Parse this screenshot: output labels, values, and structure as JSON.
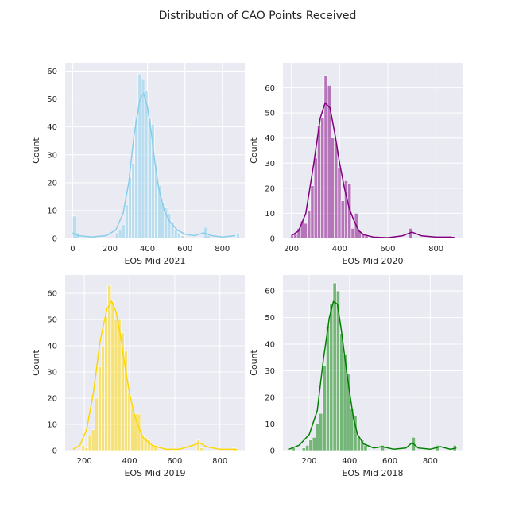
{
  "figure": {
    "title": "Distribution of CAO Points Received"
  },
  "chart_data": [
    {
      "type": "histogram",
      "panel": "top-left",
      "xlabel": "EOS Mid 2021",
      "ylabel": "Count",
      "color": "#87ceeb",
      "xlim": [
        -40,
        920
      ],
      "ylim": [
        0,
        63
      ],
      "xticks": [
        0,
        200,
        400,
        600,
        800
      ],
      "yticks": [
        0,
        10,
        20,
        30,
        40,
        50,
        60
      ],
      "bin_width": 17.5,
      "bins": [
        {
          "x": 0,
          "count": 8
        },
        {
          "x": 17.5,
          "count": 2
        },
        {
          "x": 227.5,
          "count": 2
        },
        {
          "x": 245,
          "count": 3
        },
        {
          "x": 262.5,
          "count": 5
        },
        {
          "x": 280,
          "count": 12
        },
        {
          "x": 297.5,
          "count": 22
        },
        {
          "x": 315,
          "count": 27
        },
        {
          "x": 332.5,
          "count": 43
        },
        {
          "x": 350,
          "count": 59
        },
        {
          "x": 367.5,
          "count": 57
        },
        {
          "x": 385,
          "count": 53
        },
        {
          "x": 402.5,
          "count": 43
        },
        {
          "x": 420,
          "count": 41
        },
        {
          "x": 437.5,
          "count": 27
        },
        {
          "x": 455,
          "count": 19
        },
        {
          "x": 472.5,
          "count": 13
        },
        {
          "x": 490,
          "count": 11
        },
        {
          "x": 507.5,
          "count": 9
        },
        {
          "x": 525,
          "count": 6
        },
        {
          "x": 542.5,
          "count": 3
        },
        {
          "x": 560,
          "count": 2
        },
        {
          "x": 577.5,
          "count": 1
        },
        {
          "x": 700,
          "count": 4
        },
        {
          "x": 717.5,
          "count": 1
        },
        {
          "x": 875,
          "count": 2
        }
      ],
      "kde": [
        [
          0,
          2
        ],
        [
          30,
          1
        ],
        [
          100,
          0.5
        ],
        [
          180,
          1
        ],
        [
          230,
          3
        ],
        [
          270,
          9
        ],
        [
          300,
          20
        ],
        [
          330,
          38
        ],
        [
          360,
          50
        ],
        [
          380,
          52
        ],
        [
          400,
          47
        ],
        [
          420,
          38
        ],
        [
          440,
          27
        ],
        [
          460,
          18
        ],
        [
          490,
          10
        ],
        [
          520,
          6
        ],
        [
          560,
          3
        ],
        [
          600,
          1.5
        ],
        [
          650,
          1
        ],
        [
          700,
          2
        ],
        [
          740,
          1
        ],
        [
          800,
          0.5
        ],
        [
          870,
          1
        ]
      ]
    },
    {
      "type": "histogram",
      "panel": "top-right",
      "xlabel": "EOS Mid 2020",
      "ylabel": "Count",
      "color": "#800080",
      "xlim": [
        165,
        910
      ],
      "ylim": [
        0,
        70
      ],
      "xticks": [
        200,
        400,
        600,
        800
      ],
      "yticks": [
        0,
        10,
        20,
        30,
        40,
        50,
        60
      ],
      "bin_width": 14,
      "bins": [
        {
          "x": 196,
          "count": 1
        },
        {
          "x": 210,
          "count": 2
        },
        {
          "x": 224,
          "count": 4
        },
        {
          "x": 238,
          "count": 7
        },
        {
          "x": 252,
          "count": 6
        },
        {
          "x": 266,
          "count": 11
        },
        {
          "x": 280,
          "count": 21
        },
        {
          "x": 294,
          "count": 32
        },
        {
          "x": 308,
          "count": 45
        },
        {
          "x": 322,
          "count": 48
        },
        {
          "x": 336,
          "count": 65
        },
        {
          "x": 350,
          "count": 61
        },
        {
          "x": 364,
          "count": 40
        },
        {
          "x": 378,
          "count": 38
        },
        {
          "x": 392,
          "count": 28
        },
        {
          "x": 406,
          "count": 15
        },
        {
          "x": 420,
          "count": 23
        },
        {
          "x": 434,
          "count": 22
        },
        {
          "x": 448,
          "count": 4
        },
        {
          "x": 462,
          "count": 10
        },
        {
          "x": 476,
          "count": 3
        },
        {
          "x": 490,
          "count": 2
        },
        {
          "x": 504,
          "count": 1
        },
        {
          "x": 686,
          "count": 4
        }
      ],
      "kde": [
        [
          200,
          1
        ],
        [
          230,
          3
        ],
        [
          260,
          10
        ],
        [
          290,
          28
        ],
        [
          320,
          48
        ],
        [
          340,
          54
        ],
        [
          360,
          52
        ],
        [
          380,
          42
        ],
        [
          400,
          30
        ],
        [
          420,
          20
        ],
        [
          440,
          12
        ],
        [
          460,
          7
        ],
        [
          480,
          3
        ],
        [
          500,
          1.5
        ],
        [
          540,
          0.5
        ],
        [
          600,
          0.3
        ],
        [
          660,
          1
        ],
        [
          700,
          2.5
        ],
        [
          740,
          1
        ],
        [
          800,
          0.5
        ],
        [
          860,
          0.5
        ],
        [
          880,
          0.3
        ]
      ]
    },
    {
      "type": "histogram",
      "panel": "bottom-left",
      "xlabel": "EOS Mid 2019",
      "ylabel": "Count",
      "color": "#ffd700",
      "xlim": [
        115,
        910
      ],
      "ylim": [
        0,
        67
      ],
      "xticks": [
        200,
        400,
        600,
        800
      ],
      "yticks": [
        0,
        10,
        20,
        30,
        40,
        50,
        60
      ],
      "bin_width": 14.5,
      "bins": [
        {
          "x": 188,
          "count": 2
        },
        {
          "x": 202.5,
          "count": 1
        },
        {
          "x": 217,
          "count": 6
        },
        {
          "x": 231.5,
          "count": 8
        },
        {
          "x": 246,
          "count": 20
        },
        {
          "x": 260.5,
          "count": 32
        },
        {
          "x": 275,
          "count": 40
        },
        {
          "x": 289.5,
          "count": 51
        },
        {
          "x": 304,
          "count": 63
        },
        {
          "x": 318.5,
          "count": 57
        },
        {
          "x": 333,
          "count": 50
        },
        {
          "x": 347.5,
          "count": 50
        },
        {
          "x": 362,
          "count": 45
        },
        {
          "x": 376.5,
          "count": 38
        },
        {
          "x": 391,
          "count": 22
        },
        {
          "x": 405.5,
          "count": 16
        },
        {
          "x": 420,
          "count": 14
        },
        {
          "x": 434.5,
          "count": 14
        },
        {
          "x": 449,
          "count": 6
        },
        {
          "x": 463.5,
          "count": 5
        },
        {
          "x": 478,
          "count": 4
        },
        {
          "x": 492.5,
          "count": 2
        },
        {
          "x": 507,
          "count": 2
        },
        {
          "x": 697,
          "count": 4
        },
        {
          "x": 711.5,
          "count": 1
        },
        {
          "x": 856.5,
          "count": 1
        }
      ],
      "kde": [
        [
          150,
          0.5
        ],
        [
          180,
          2
        ],
        [
          210,
          8
        ],
        [
          240,
          22
        ],
        [
          270,
          42
        ],
        [
          300,
          54
        ],
        [
          320,
          57
        ],
        [
          340,
          53
        ],
        [
          360,
          44
        ],
        [
          380,
          32
        ],
        [
          400,
          22
        ],
        [
          420,
          14
        ],
        [
          440,
          9
        ],
        [
          460,
          5
        ],
        [
          500,
          2
        ],
        [
          560,
          0.5
        ],
        [
          620,
          0.5
        ],
        [
          680,
          2
        ],
        [
          710,
          3
        ],
        [
          740,
          1.5
        ],
        [
          800,
          0.5
        ],
        [
          860,
          0.5
        ],
        [
          875,
          0.3
        ]
      ]
    },
    {
      "type": "histogram",
      "panel": "bottom-right",
      "xlabel": "EOS Mid 2018",
      "ylabel": "Count",
      "color": "#008000",
      "xlim": [
        70,
        960
      ],
      "ylim": [
        0,
        66
      ],
      "xticks": [
        200,
        400,
        600,
        800
      ],
      "yticks": [
        0,
        10,
        20,
        30,
        40,
        50,
        60
      ],
      "bin_width": 17,
      "bins": [
        {
          "x": 114,
          "count": 1
        },
        {
          "x": 165,
          "count": 1
        },
        {
          "x": 182,
          "count": 2
        },
        {
          "x": 199,
          "count": 4
        },
        {
          "x": 216,
          "count": 5
        },
        {
          "x": 233,
          "count": 10
        },
        {
          "x": 250,
          "count": 14
        },
        {
          "x": 267,
          "count": 32
        },
        {
          "x": 284,
          "count": 47
        },
        {
          "x": 301,
          "count": 55
        },
        {
          "x": 318,
          "count": 63
        },
        {
          "x": 335,
          "count": 60
        },
        {
          "x": 352,
          "count": 44
        },
        {
          "x": 369,
          "count": 36
        },
        {
          "x": 386,
          "count": 29
        },
        {
          "x": 403,
          "count": 16
        },
        {
          "x": 420,
          "count": 13
        },
        {
          "x": 437,
          "count": 5
        },
        {
          "x": 454,
          "count": 4
        },
        {
          "x": 471,
          "count": 2
        },
        {
          "x": 556,
          "count": 2
        },
        {
          "x": 709,
          "count": 5
        },
        {
          "x": 828,
          "count": 2
        },
        {
          "x": 913,
          "count": 2
        }
      ],
      "kde": [
        [
          100,
          0.5
        ],
        [
          150,
          2
        ],
        [
          200,
          6
        ],
        [
          240,
          15
        ],
        [
          270,
          34
        ],
        [
          300,
          50
        ],
        [
          320,
          56
        ],
        [
          340,
          55
        ],
        [
          360,
          45
        ],
        [
          380,
          33
        ],
        [
          400,
          22
        ],
        [
          420,
          12
        ],
        [
          440,
          6
        ],
        [
          470,
          2.5
        ],
        [
          520,
          1
        ],
        [
          560,
          1.5
        ],
        [
          620,
          0.5
        ],
        [
          680,
          1
        ],
        [
          710,
          3
        ],
        [
          740,
          1
        ],
        [
          800,
          0.5
        ],
        [
          850,
          1.5
        ],
        [
          900,
          0.5
        ],
        [
          930,
          1
        ]
      ]
    }
  ]
}
